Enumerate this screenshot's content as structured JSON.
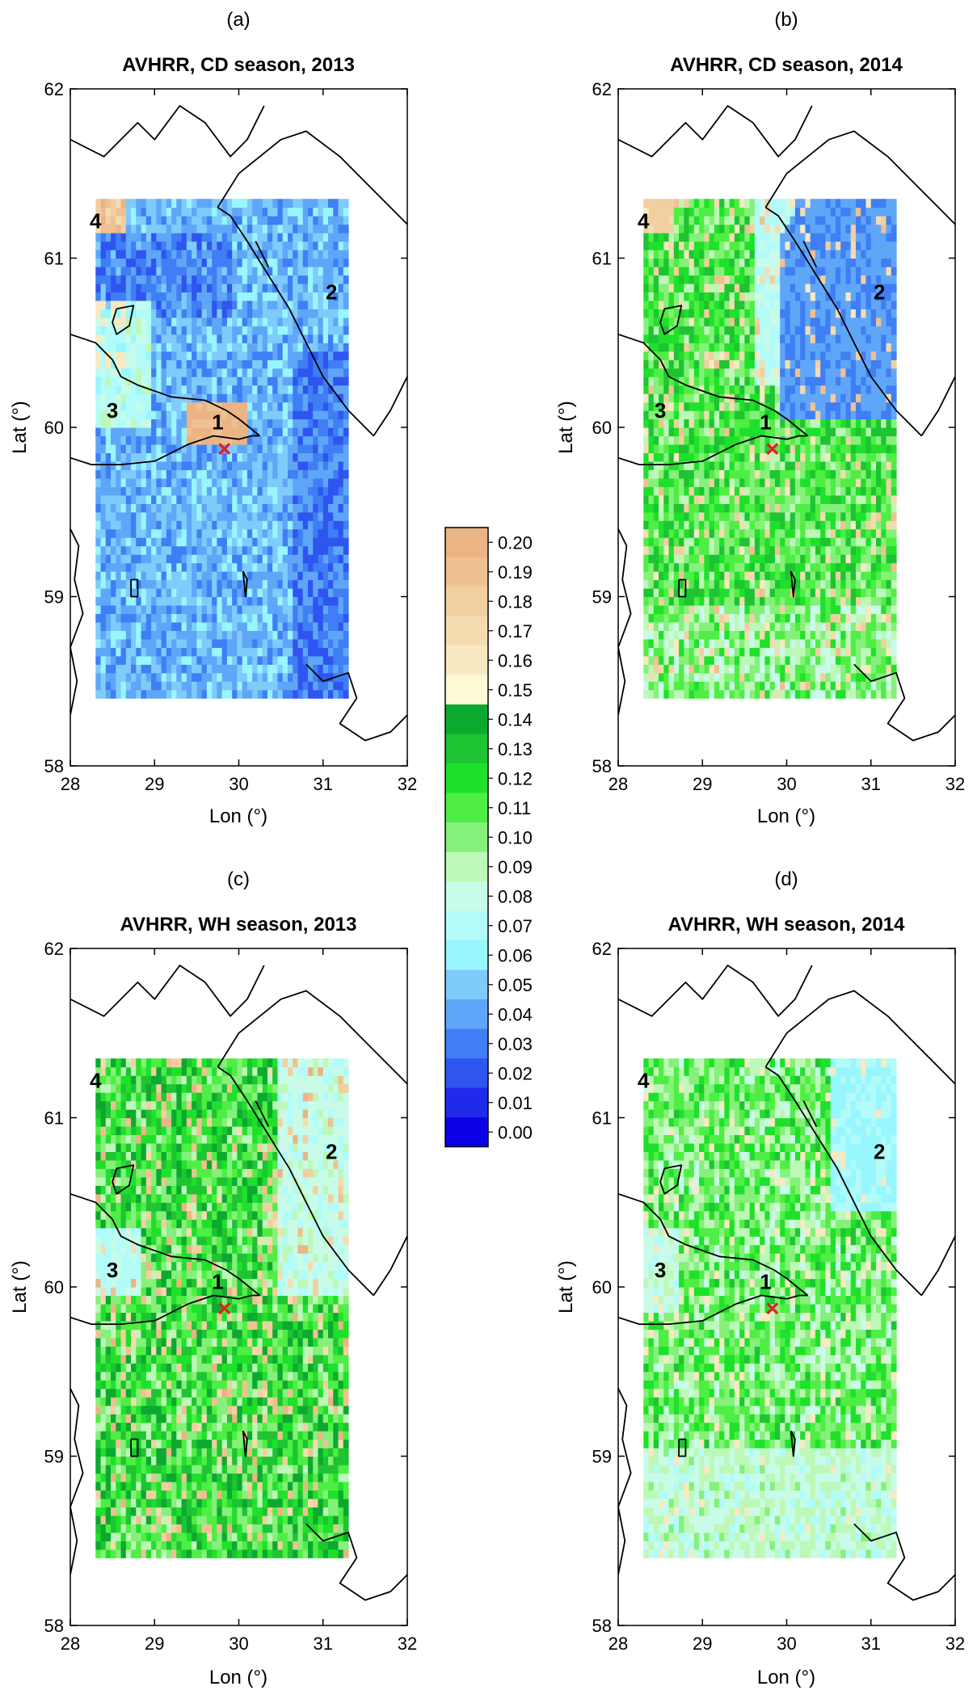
{
  "panels": [
    {
      "letter": "(a)",
      "title": "AVHRR, CD season, 2013",
      "scene": "cd2013"
    },
    {
      "letter": "(b)",
      "title": "AVHRR, CD season, 2014",
      "scene": "cd2014"
    },
    {
      "letter": "(c)",
      "title": "AVHRR, WH season, 2013",
      "scene": "wh2013"
    },
    {
      "letter": "(d)",
      "title": "AVHRR, WH season, 2014",
      "scene": "wh2014"
    }
  ],
  "axes": {
    "xlabel": "Lon (°)",
    "ylabel": "Lat (°)",
    "xlim": [
      28,
      32
    ],
    "ylim": [
      58,
      62
    ],
    "xticks": [
      "28",
      "29",
      "30",
      "31",
      "32"
    ],
    "yticks": [
      "58",
      "59",
      "60",
      "61",
      "62"
    ]
  },
  "data_domain": {
    "lon": [
      28.3,
      31.3
    ],
    "lat": [
      58.4,
      61.35
    ]
  },
  "regions": [
    {
      "label": "1",
      "lon": 29.75,
      "lat": 60.03
    },
    {
      "label": "2",
      "lon": 31.1,
      "lat": 60.8
    },
    {
      "label": "3",
      "lon": 28.5,
      "lat": 60.1
    },
    {
      "label": "4",
      "lon": 28.3,
      "lat": 61.22
    }
  ],
  "marker": {
    "symbol": "×",
    "lon": 29.83,
    "lat": 59.87,
    "color": "#e02020"
  },
  "colorbar": {
    "labels": [
      "0.20",
      "0.19",
      "0.18",
      "0.17",
      "0.16",
      "0.15",
      "0.14",
      "0.13",
      "0.12",
      "0.11",
      "0.10",
      "0.09",
      "0.08",
      "0.07",
      "0.06",
      "0.05",
      "0.04",
      "0.03",
      "0.02",
      "0.01",
      "0.00"
    ],
    "colors": [
      "#ebb484",
      "#efc192",
      "#f2cfa0",
      "#f5dcb0",
      "#f8e9c2",
      "#fdfad6",
      "#0ca930",
      "#1ec432",
      "#1fe02a",
      "#4fee44",
      "#85f07a",
      "#bdf8b8",
      "#c8fce8",
      "#b2fbf8",
      "#98f6fe",
      "#7fcbfb",
      "#5fa6f8",
      "#3f7ef5",
      "#2f55f0",
      "#1f2aea",
      "#0c00e6"
    ]
  }
}
